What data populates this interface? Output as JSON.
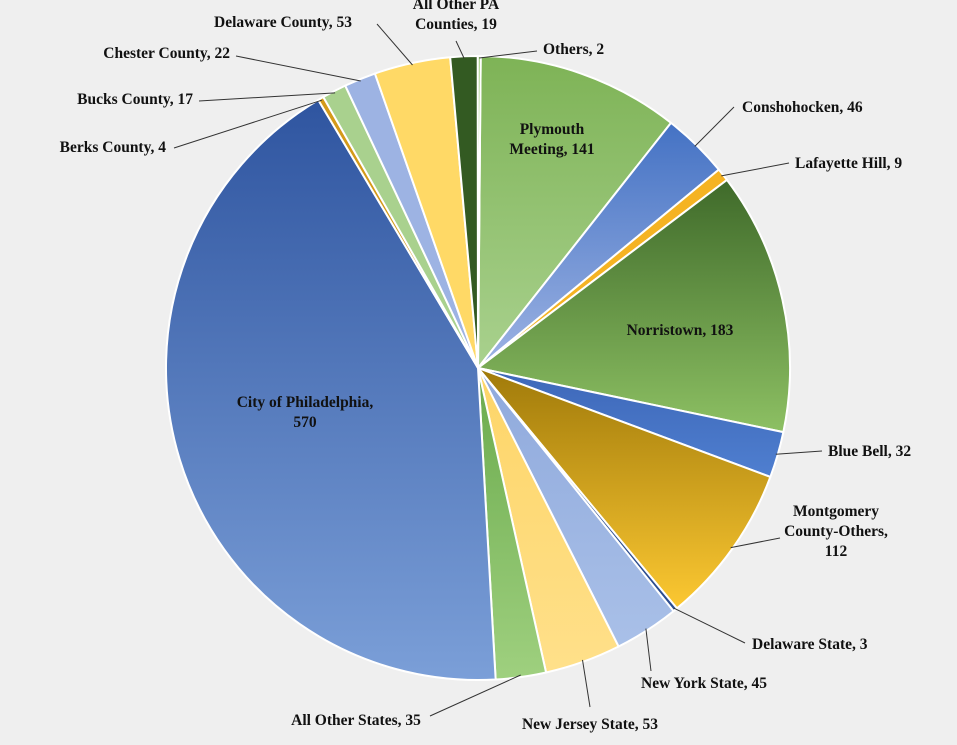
{
  "chart_data": {
    "type": "pie",
    "title": "",
    "legend": "none",
    "start_angle_deg": 0,
    "direction": "clockwise",
    "slices": [
      {
        "name": "Plymouth Meeting",
        "value": 141,
        "label": "Plymouth\nMeeting, 141",
        "color": "#7eb356",
        "color_light": "#a9d18e",
        "inside": true
      },
      {
        "name": "Conshohocken",
        "value": 46,
        "label": "Conshohocken, 46",
        "color": "#4472c4",
        "color_light": "#9db3e3"
      },
      {
        "name": "Lafayette Hill",
        "value": 9,
        "label": "Lafayette Hill, 9",
        "color": "#f5b323",
        "color_light": "#f5b323"
      },
      {
        "name": "Norristown",
        "value": 183,
        "label": "Norristown, 183",
        "color": "#3f6a2a",
        "color_light": "#8dc063",
        "inside": true
      },
      {
        "name": "Blue Bell",
        "value": 32,
        "label": "Blue Bell, 32",
        "color": "#3d67b8",
        "color_light": "#4f7fd0"
      },
      {
        "name": "Montgomery County-Others",
        "value": 112,
        "label": "Montgomery\nCounty-Others,\n112",
        "color": "#a07a0a",
        "color_light": "#fcc832"
      },
      {
        "name": "Delaware State",
        "value": 3,
        "label": "Delaware State, 3",
        "color": "#2d4d8f",
        "color_light": "#2d4d8f"
      },
      {
        "name": "New York State",
        "value": 45,
        "label": "New York State, 45",
        "color": "#8fa9dc",
        "color_light": "#a9c0e8"
      },
      {
        "name": "New Jersey State",
        "value": 53,
        "label": "New Jersey State, 53",
        "color": "#fdd568",
        "color_light": "#ffe08a"
      },
      {
        "name": "All Other States",
        "value": 35,
        "label": "All Other States, 35",
        "color": "#6aaa4c",
        "color_light": "#9fd07f"
      },
      {
        "name": "City of Philadelphia",
        "value": 570,
        "label": "City of Philadelphia,\n570",
        "color": "#2f55a0",
        "color_light": "#7b9fd8",
        "inside": true
      },
      {
        "name": "Berks County",
        "value": 4,
        "label": "Berks County, 4",
        "color": "#d49a1a",
        "color_light": "#d49a1a"
      },
      {
        "name": "Bucks County",
        "value": 17,
        "label": "Bucks County, 17",
        "color": "#a9d18e",
        "color_light": "#a9d18e"
      },
      {
        "name": "Chester County",
        "value": 22,
        "label": "Chester County, 22",
        "color": "#9db3e3",
        "color_light": "#9db3e3"
      },
      {
        "name": "Delaware County",
        "value": 53,
        "label": "Delaware County, 53",
        "color": "#ffd966",
        "color_light": "#ffd966"
      },
      {
        "name": "All Other PA Counties",
        "value": 19,
        "label": "All Other PA\nCounties, 19",
        "color": "#335a22",
        "color_light": "#335a22"
      },
      {
        "name": "Others",
        "value": 2,
        "label": "Others, 2",
        "color": "#8cc063",
        "color_light": "#8cc063"
      }
    ]
  }
}
